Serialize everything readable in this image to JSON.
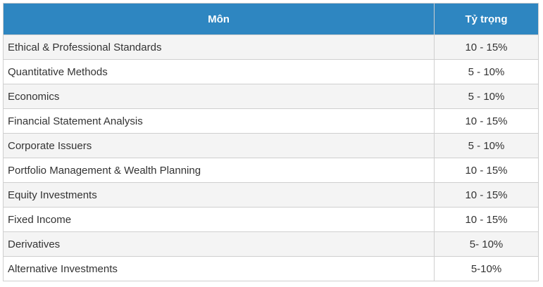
{
  "table": {
    "headers": {
      "subject": "Môn",
      "weight": "Tỷ trọng"
    },
    "rows": [
      {
        "subject": "Ethical & Professional Standards",
        "weight": "10 - 15%"
      },
      {
        "subject": "Quantitative Methods",
        "weight": "5 - 10%"
      },
      {
        "subject": "Economics",
        "weight": "5 - 10%"
      },
      {
        "subject": "Financial Statement Analysis",
        "weight": "10 - 15%"
      },
      {
        "subject": "Corporate Issuers",
        "weight": "5 - 10%"
      },
      {
        "subject": "Portfolio Management & Wealth Planning",
        "weight": "10 - 15%"
      },
      {
        "subject": "Equity Investments",
        "weight": "10 - 15%"
      },
      {
        "subject": "Fixed Income",
        "weight": "10 - 15%"
      },
      {
        "subject": "Derivatives",
        "weight": "5- 10%"
      },
      {
        "subject": "Alternative Investments",
        "weight": "5-10%"
      }
    ]
  },
  "colors": {
    "header_background": "#2e86c1",
    "header_text": "#ffffff",
    "row_alt_background": "#f4f4f4",
    "border": "#cfcfcf"
  }
}
